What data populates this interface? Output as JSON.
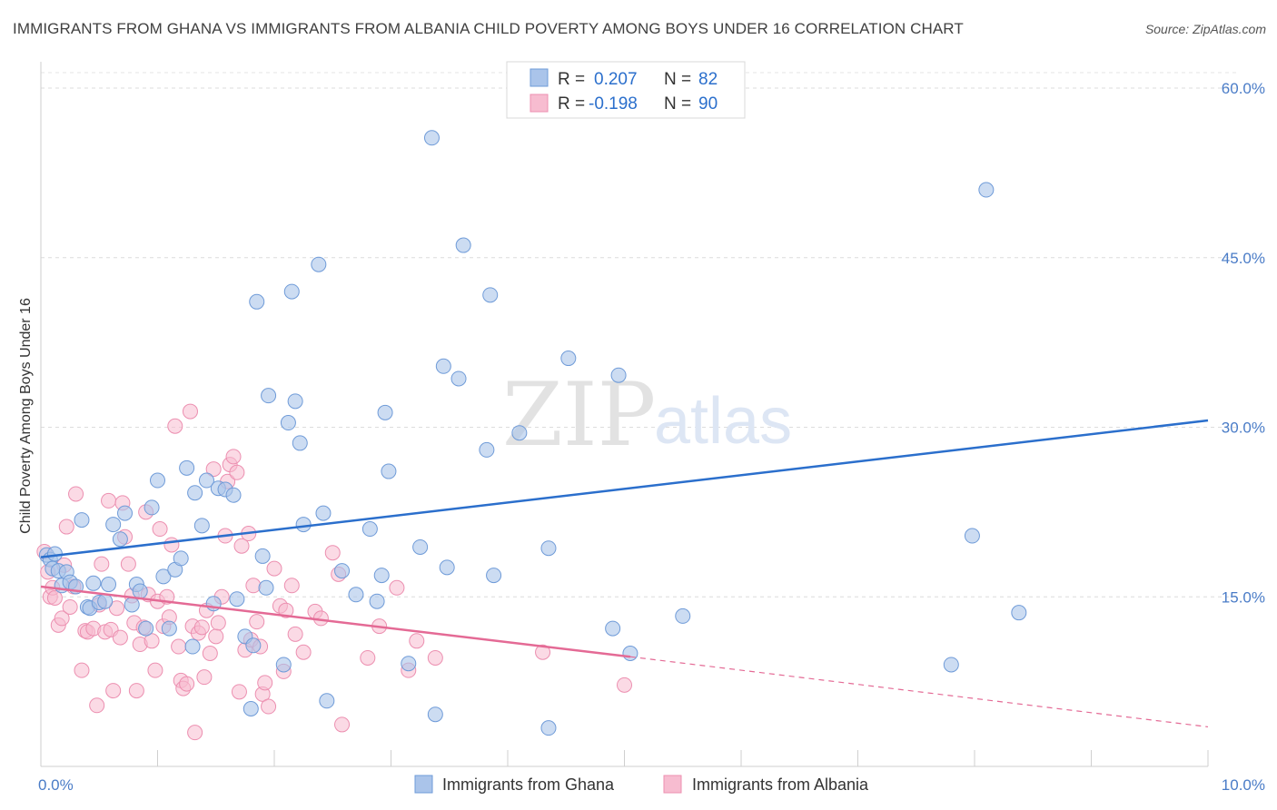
{
  "title": "IMMIGRANTS FROM GHANA VS IMMIGRANTS FROM ALBANIA CHILD POVERTY AMONG BOYS UNDER 16 CORRELATION CHART",
  "source": "Source: ZipAtlas.com",
  "watermark": {
    "zip": "ZIP",
    "atlas": "atlas"
  },
  "colors": {
    "ghana_fill": "#aac4ea",
    "ghana_stroke": "#6f9bd8",
    "ghana_line": "#2b6fcc",
    "albania_fill": "#f7bcd0",
    "albania_stroke": "#ec8fb0",
    "albania_line": "#e46a95",
    "tick_text": "#4a7cc7"
  },
  "legend": {
    "r_label": "R =",
    "n_label": "N =",
    "ghana": {
      "r": "0.207",
      "n": "82"
    },
    "albania": {
      "r": "-0.198",
      "n": "90"
    }
  },
  "chart_data": {
    "type": "scatter",
    "xlim": [
      0,
      10
    ],
    "ylim": [
      0,
      60
    ],
    "xlabel": "",
    "ylabel": "Child Poverty Among Boys Under 16",
    "x_tick_labels": [
      "0.0%",
      "10.0%"
    ],
    "y_ticks": [
      15,
      30,
      45,
      60
    ],
    "y_tick_labels": [
      "15.0%",
      "30.0%",
      "45.0%",
      "60.0%"
    ],
    "grid": "horizontal dashed",
    "legend_position": "top-center",
    "series": [
      {
        "name": "Immigrants from Ghana",
        "trend": {
          "x0": 0,
          "y0": 18.5,
          "x1": 10,
          "y1": 30.6,
          "style": "solid"
        },
        "points": [
          [
            0.05,
            18.7
          ],
          [
            0.08,
            18.3
          ],
          [
            0.1,
            17.5
          ],
          [
            0.12,
            18.8
          ],
          [
            0.15,
            17.3
          ],
          [
            0.18,
            16.0
          ],
          [
            0.22,
            17.2
          ],
          [
            0.25,
            16.3
          ],
          [
            0.3,
            15.9
          ],
          [
            0.35,
            21.8
          ],
          [
            0.4,
            14.1
          ],
          [
            0.42,
            14.0
          ],
          [
            0.45,
            16.2
          ],
          [
            0.5,
            14.5
          ],
          [
            0.55,
            14.6
          ],
          [
            0.58,
            16.1
          ],
          [
            0.62,
            21.4
          ],
          [
            0.68,
            20.1
          ],
          [
            0.72,
            22.4
          ],
          [
            0.78,
            14.3
          ],
          [
            0.82,
            16.1
          ],
          [
            0.85,
            15.5
          ],
          [
            0.9,
            12.2
          ],
          [
            0.95,
            22.9
          ],
          [
            1.0,
            25.3
          ],
          [
            1.05,
            16.8
          ],
          [
            1.1,
            12.2
          ],
          [
            1.15,
            17.4
          ],
          [
            1.2,
            18.4
          ],
          [
            1.25,
            26.4
          ],
          [
            1.3,
            10.6
          ],
          [
            1.32,
            24.2
          ],
          [
            1.38,
            21.3
          ],
          [
            1.42,
            25.3
          ],
          [
            1.48,
            14.4
          ],
          [
            1.52,
            24.6
          ],
          [
            1.58,
            24.5
          ],
          [
            1.65,
            24.0
          ],
          [
            1.68,
            14.8
          ],
          [
            1.75,
            11.5
          ],
          [
            1.8,
            5.1
          ],
          [
            1.82,
            10.7
          ],
          [
            1.85,
            41.1
          ],
          [
            1.9,
            18.6
          ],
          [
            1.93,
            15.8
          ],
          [
            1.95,
            32.8
          ],
          [
            2.08,
            9.0
          ],
          [
            2.12,
            30.4
          ],
          [
            2.15,
            42.0
          ],
          [
            2.18,
            32.3
          ],
          [
            2.22,
            28.6
          ],
          [
            2.25,
            21.4
          ],
          [
            2.38,
            44.4
          ],
          [
            2.42,
            22.4
          ],
          [
            2.45,
            5.8
          ],
          [
            2.58,
            17.3
          ],
          [
            2.7,
            15.2
          ],
          [
            2.82,
            21.0
          ],
          [
            2.88,
            14.6
          ],
          [
            2.92,
            16.9
          ],
          [
            2.95,
            31.3
          ],
          [
            2.98,
            26.1
          ],
          [
            3.15,
            9.1
          ],
          [
            3.25,
            19.4
          ],
          [
            3.35,
            55.6
          ],
          [
            3.38,
            4.6
          ],
          [
            3.45,
            35.4
          ],
          [
            3.48,
            17.6
          ],
          [
            3.58,
            34.3
          ],
          [
            3.62,
            46.1
          ],
          [
            3.82,
            28.0
          ],
          [
            3.85,
            41.7
          ],
          [
            3.88,
            16.9
          ],
          [
            4.1,
            29.5
          ],
          [
            4.35,
            19.3
          ],
          [
            4.35,
            3.4
          ],
          [
            4.52,
            36.1
          ],
          [
            4.9,
            12.2
          ],
          [
            4.95,
            34.6
          ],
          [
            5.05,
            10.0
          ],
          [
            5.5,
            13.3
          ],
          [
            8.1,
            51.0
          ],
          [
            7.8,
            9.0
          ],
          [
            7.98,
            20.4
          ],
          [
            8.38,
            13.6
          ]
        ]
      },
      {
        "name": "Immigrants from Albania",
        "trend": {
          "x0": 0,
          "y0": 15.9,
          "x1": 5.05,
          "y1": 9.7,
          "style": "solid",
          "dashed_to": {
            "x": 10,
            "y": 3.5
          }
        },
        "points": [
          [
            0.03,
            19.0
          ],
          [
            0.06,
            17.2
          ],
          [
            0.08,
            15.0
          ],
          [
            0.1,
            15.8
          ],
          [
            0.12,
            14.9
          ],
          [
            0.15,
            12.5
          ],
          [
            0.18,
            13.1
          ],
          [
            0.2,
            17.8
          ],
          [
            0.22,
            21.2
          ],
          [
            0.25,
            14.1
          ],
          [
            0.28,
            15.9
          ],
          [
            0.3,
            24.1
          ],
          [
            0.35,
            8.5
          ],
          [
            0.38,
            12.0
          ],
          [
            0.4,
            11.9
          ],
          [
            0.45,
            12.2
          ],
          [
            0.48,
            5.4
          ],
          [
            0.5,
            14.3
          ],
          [
            0.52,
            17.9
          ],
          [
            0.55,
            11.9
          ],
          [
            0.58,
            23.5
          ],
          [
            0.6,
            12.1
          ],
          [
            0.62,
            6.7
          ],
          [
            0.65,
            14.0
          ],
          [
            0.68,
            11.4
          ],
          [
            0.7,
            23.3
          ],
          [
            0.72,
            20.3
          ],
          [
            0.75,
            17.9
          ],
          [
            0.78,
            15.1
          ],
          [
            0.8,
            12.7
          ],
          [
            0.82,
            6.7
          ],
          [
            0.85,
            10.8
          ],
          [
            0.88,
            12.3
          ],
          [
            0.9,
            22.5
          ],
          [
            0.92,
            15.2
          ],
          [
            0.95,
            11.1
          ],
          [
            0.98,
            8.5
          ],
          [
            1.0,
            14.6
          ],
          [
            1.02,
            21.0
          ],
          [
            1.05,
            12.4
          ],
          [
            1.08,
            15.0
          ],
          [
            1.1,
            13.2
          ],
          [
            1.12,
            19.6
          ],
          [
            1.15,
            30.1
          ],
          [
            1.18,
            10.6
          ],
          [
            1.2,
            7.6
          ],
          [
            1.22,
            6.9
          ],
          [
            1.25,
            7.3
          ],
          [
            1.28,
            31.4
          ],
          [
            1.3,
            12.4
          ],
          [
            1.32,
            3.0
          ],
          [
            1.35,
            11.8
          ],
          [
            1.38,
            12.3
          ],
          [
            1.4,
            7.9
          ],
          [
            1.42,
            13.8
          ],
          [
            1.45,
            10.0
          ],
          [
            1.48,
            26.3
          ],
          [
            1.5,
            11.5
          ],
          [
            1.52,
            12.7
          ],
          [
            1.55,
            15.0
          ],
          [
            1.58,
            20.4
          ],
          [
            1.6,
            25.2
          ],
          [
            1.62,
            26.7
          ],
          [
            1.65,
            27.4
          ],
          [
            1.68,
            26.0
          ],
          [
            1.7,
            6.6
          ],
          [
            1.72,
            19.5
          ],
          [
            1.75,
            10.3
          ],
          [
            1.78,
            20.6
          ],
          [
            1.8,
            11.2
          ],
          [
            1.82,
            16.0
          ],
          [
            1.85,
            12.8
          ],
          [
            1.88,
            10.6
          ],
          [
            1.9,
            6.4
          ],
          [
            1.92,
            7.4
          ],
          [
            1.95,
            5.3
          ],
          [
            2.0,
            17.5
          ],
          [
            2.05,
            14.2
          ],
          [
            2.08,
            8.4
          ],
          [
            2.1,
            13.8
          ],
          [
            2.15,
            16.0
          ],
          [
            2.18,
            11.7
          ],
          [
            2.25,
            10.1
          ],
          [
            2.35,
            13.7
          ],
          [
            2.4,
            13.1
          ],
          [
            2.5,
            18.9
          ],
          [
            2.55,
            17.0
          ],
          [
            2.58,
            3.7
          ],
          [
            2.8,
            9.6
          ],
          [
            2.9,
            12.4
          ],
          [
            3.05,
            15.8
          ],
          [
            3.15,
            8.5
          ],
          [
            3.22,
            11.1
          ],
          [
            3.38,
            9.6
          ],
          [
            4.3,
            10.1
          ],
          [
            5.0,
            7.2
          ]
        ]
      }
    ]
  },
  "bottom_legend": [
    {
      "label": "Immigrants from Ghana"
    },
    {
      "label": "Immigrants from Albania"
    }
  ]
}
